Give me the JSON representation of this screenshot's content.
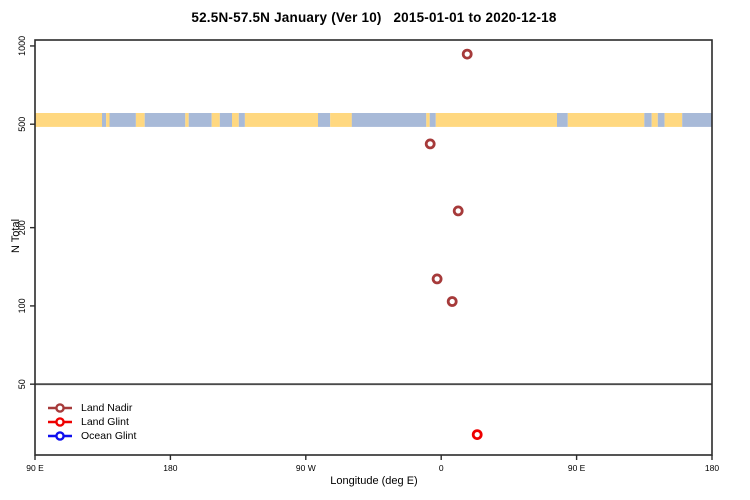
{
  "chart_data": {
    "type": "scatter",
    "title": "52.5N-57.5N January (Ver 10)   2015-01-01 to 2020-12-18",
    "xlabel": "Longitude (deg E)",
    "ylabel": "N Total",
    "y_scale": "log10",
    "grid": false,
    "y_axis": {
      "min": 26.7,
      "max": 1054,
      "ticks": [
        {
          "value": 1000,
          "label": "1000"
        },
        {
          "value": 500,
          "label": "500"
        },
        {
          "value": 200,
          "label": "200"
        },
        {
          "value": 100,
          "label": "100"
        },
        {
          "value": 50,
          "label": "50"
        }
      ]
    },
    "x_axis": {
      "min": -270,
      "max": 180,
      "ticks": [
        {
          "value": -270,
          "label": "90 E"
        },
        {
          "value": -180,
          "label": "180"
        },
        {
          "value": -90,
          "label": "90 W"
        },
        {
          "value": 0,
          "label": "0"
        },
        {
          "value": 90,
          "label": "90 E"
        },
        {
          "value": 180,
          "label": "180"
        }
      ]
    },
    "reference_line": {
      "value": 50,
      "color": "#4a4a4a"
    },
    "map_band": {
      "n_from": 488,
      "n_to": 552,
      "land_color": "#FFD880",
      "ocean_color": "#A8BAD8",
      "segments": [
        {
          "f0": 0.0,
          "f1": 0.099,
          "t": "land"
        },
        {
          "f0": 0.099,
          "f1": 0.105,
          "t": "ocean"
        },
        {
          "f0": 0.105,
          "f1": 0.11,
          "t": "land"
        },
        {
          "f0": 0.11,
          "f1": 0.149,
          "t": "ocean"
        },
        {
          "f0": 0.149,
          "f1": 0.162,
          "t": "land"
        },
        {
          "f0": 0.162,
          "f1": 0.222,
          "t": "ocean"
        },
        {
          "f0": 0.222,
          "f1": 0.227,
          "t": "land"
        },
        {
          "f0": 0.227,
          "f1": 0.261,
          "t": "ocean"
        },
        {
          "f0": 0.261,
          "f1": 0.273,
          "t": "land"
        },
        {
          "f0": 0.273,
          "f1": 0.291,
          "t": "ocean"
        },
        {
          "f0": 0.291,
          "f1": 0.301,
          "t": "land"
        },
        {
          "f0": 0.301,
          "f1": 0.31,
          "t": "ocean"
        },
        {
          "f0": 0.31,
          "f1": 0.418,
          "t": "land"
        },
        {
          "f0": 0.418,
          "f1": 0.436,
          "t": "ocean"
        },
        {
          "f0": 0.436,
          "f1": 0.468,
          "t": "land"
        },
        {
          "f0": 0.468,
          "f1": 0.578,
          "t": "ocean"
        },
        {
          "f0": 0.578,
          "f1": 0.583,
          "t": "land"
        },
        {
          "f0": 0.583,
          "f1": 0.592,
          "t": "ocean"
        },
        {
          "f0": 0.592,
          "f1": 0.771,
          "t": "land"
        },
        {
          "f0": 0.771,
          "f1": 0.787,
          "t": "ocean"
        },
        {
          "f0": 0.787,
          "f1": 0.9,
          "t": "land"
        },
        {
          "f0": 0.9,
          "f1": 0.911,
          "t": "ocean"
        },
        {
          "f0": 0.911,
          "f1": 0.92,
          "t": "land"
        },
        {
          "f0": 0.92,
          "f1": 0.93,
          "t": "ocean"
        },
        {
          "f0": 0.93,
          "f1": 0.956,
          "t": "land"
        },
        {
          "f0": 0.956,
          "f1": 1.0,
          "t": "ocean"
        }
      ]
    },
    "series": [
      {
        "name": "Land Nadir",
        "color": "#A63A3A",
        "points": [
          {
            "lon": 17.3,
            "n": 930
          },
          {
            "lon": -7.3,
            "n": 420
          },
          {
            "lon": 11.3,
            "n": 232
          },
          {
            "lon": -2.7,
            "n": 127
          },
          {
            "lon": 7.3,
            "n": 104
          }
        ]
      },
      {
        "name": "Land Glint",
        "color": "#EE0000",
        "points": [
          {
            "lon": 23.9,
            "n": 32
          }
        ]
      },
      {
        "name": "Ocean Glint",
        "color": "#0F0FEE",
        "points": []
      }
    ],
    "legend_position": "bottom-left"
  }
}
